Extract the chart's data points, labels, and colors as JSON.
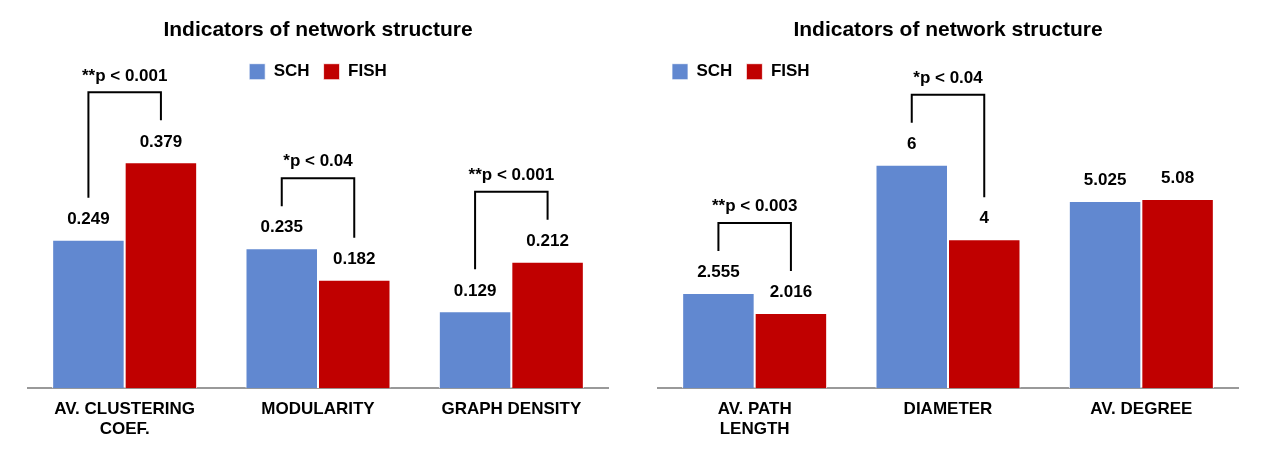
{
  "chart_data": [
    {
      "type": "bar",
      "title": "Indicators of network structure",
      "categories": [
        "AV. CLUSTERING COEF.",
        "MODULARITY",
        "GRAPH DENSITY"
      ],
      "series": [
        {
          "name": "SCH",
          "color": "#6188d0",
          "values": [
            0.249,
            0.235,
            0.129
          ]
        },
        {
          "name": "FISH",
          "color": "#c00000",
          "values": [
            0.379,
            0.182,
            0.212
          ]
        }
      ],
      "data_labels": true,
      "legend": "top",
      "annotations": [
        "**p < 0.001",
        "*p < 0.04",
        "**p < 0.001"
      ]
    },
    {
      "type": "bar",
      "title": "Indicators of network structure",
      "categories": [
        "AV. PATH LENGTH",
        "DIAMETER",
        "AV. DEGREE"
      ],
      "series": [
        {
          "name": "SCH",
          "color": "#6188d0",
          "values": [
            2.555,
            6,
            5.025
          ]
        },
        {
          "name": "FISH",
          "color": "#c00000",
          "values": [
            2.016,
            4,
            5.08
          ]
        }
      ],
      "data_labels": true,
      "legend": "top left",
      "annotations": [
        "**p < 0.003",
        "*p < 0.04"
      ]
    }
  ]
}
